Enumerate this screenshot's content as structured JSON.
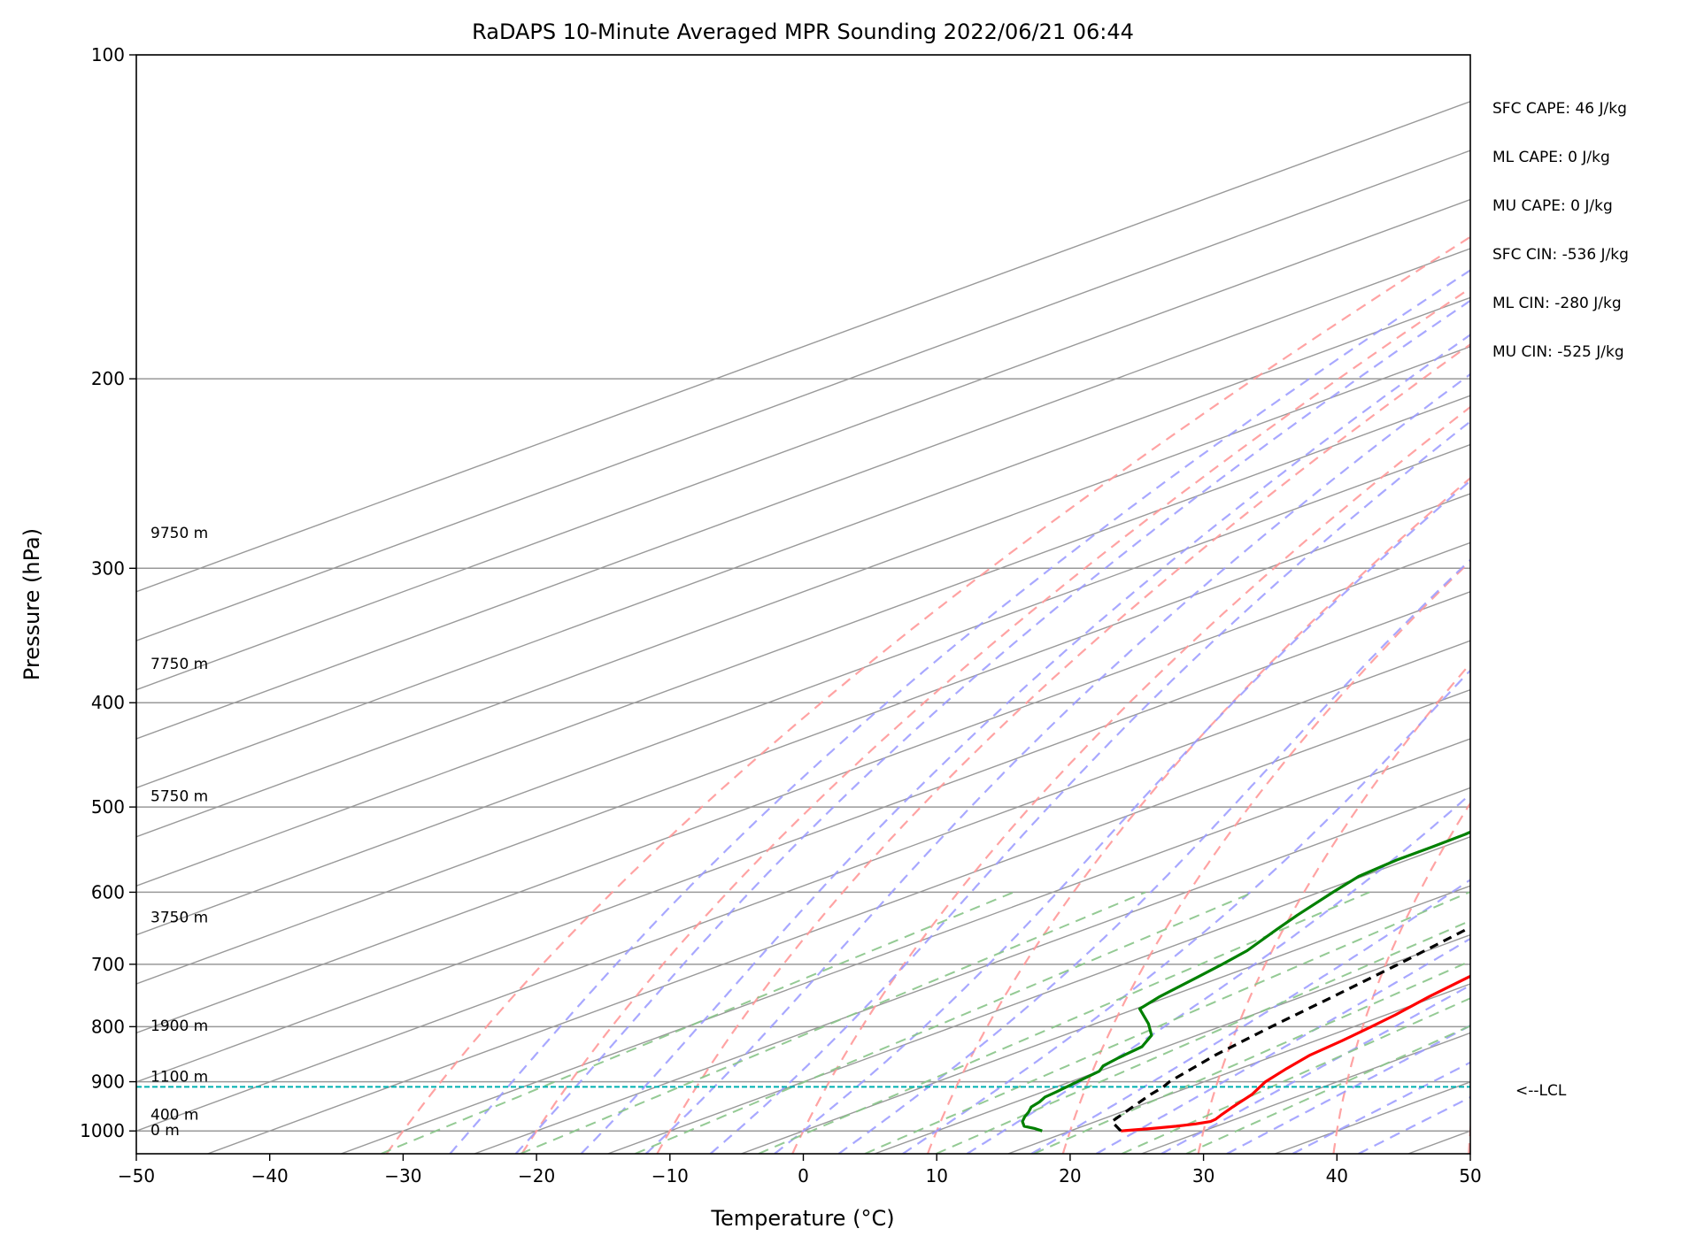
{
  "chart_data": {
    "type": "line",
    "subtype": "skew-t log-p sounding",
    "title": "RaDAPS 10-Minute Averaged MPR Sounding 2022/06/21 06:44",
    "xlabel": "Temperature (°C)",
    "ylabel": "Pressure (hPa)",
    "xlim": [
      -50,
      50
    ],
    "ylim": [
      1050,
      100
    ],
    "y_scale": "log",
    "x_ticks": [
      -50,
      -40,
      -30,
      -20,
      -10,
      0,
      10,
      20,
      30,
      40,
      50
    ],
    "x_tick_labels": [
      "−50",
      "−40",
      "−30",
      "−20",
      "−10",
      "0",
      "10",
      "20",
      "30",
      "40",
      "50"
    ],
    "y_ticks": [
      100,
      200,
      300,
      400,
      500,
      600,
      700,
      800,
      900,
      1000
    ],
    "y_tick_labels": [
      "100",
      "200",
      "300",
      "400",
      "500",
      "600",
      "700",
      "800",
      "900",
      "1000"
    ],
    "grid": true,
    "series": [
      {
        "key": "temperature",
        "color": "#ff0000",
        "style": "solid",
        "points": [
          [
            1000,
            23.8
          ],
          [
            995,
            25.5
          ],
          [
            990,
            27.0
          ],
          [
            985,
            28.0
          ],
          [
            980,
            28.6
          ],
          [
            975,
            28.5
          ],
          [
            965,
            28.0
          ],
          [
            950,
            27.3
          ],
          [
            925,
            26.2
          ],
          [
            900,
            24.6
          ],
          [
            875,
            23.5
          ],
          [
            850,
            22.5
          ],
          [
            825,
            22.0
          ],
          [
            800,
            21.3
          ],
          [
            780,
            20.7
          ],
          [
            750,
            19.5
          ],
          [
            720,
            18.5
          ],
          [
            700,
            17.9
          ],
          [
            680,
            17.3
          ],
          [
            650,
            15.6
          ],
          [
            620,
            13.8
          ],
          [
            600,
            12.3
          ],
          [
            575,
            10.8
          ],
          [
            550,
            9.4
          ],
          [
            525,
            7.3
          ],
          [
            500,
            5.4
          ],
          [
            480,
            4.3
          ],
          [
            460,
            3.7
          ],
          [
            440,
            1.6
          ],
          [
            420,
            0.0
          ],
          [
            400,
            -2.0
          ],
          [
            380,
            -3.6
          ],
          [
            360,
            -5.6
          ],
          [
            340,
            -7.7
          ],
          [
            320,
            -10.1
          ],
          [
            300,
            -12.2
          ],
          [
            290,
            -13.4
          ],
          [
            280,
            -14.4
          ],
          [
            275,
            -15.2
          ]
        ]
      },
      {
        "key": "dewpoint",
        "color": "#008000",
        "style": "solid",
        "points": [
          [
            1000,
            17.9
          ],
          [
            995,
            16.9
          ],
          [
            990,
            15.6
          ],
          [
            980,
            14.5
          ],
          [
            970,
            13.7
          ],
          [
            960,
            13.0
          ],
          [
            950,
            12.2
          ],
          [
            940,
            11.8
          ],
          [
            930,
            11.2
          ],
          [
            920,
            11.0
          ],
          [
            900,
            10.5
          ],
          [
            880,
            10.0
          ],
          [
            870,
            9.2
          ],
          [
            855,
            8.7
          ],
          [
            835,
            8.2
          ],
          [
            815,
            6.6
          ],
          [
            795,
            4.0
          ],
          [
            770,
            0.3
          ],
          [
            750,
            -0.7
          ],
          [
            720,
            -1.8
          ],
          [
            700,
            -2.6
          ],
          [
            680,
            -3.5
          ],
          [
            650,
            -5.6
          ],
          [
            630,
            -7.0
          ],
          [
            600,
            -9.0
          ],
          [
            580,
            -10.3
          ],
          [
            560,
            -10.8
          ],
          [
            545,
            -10.8
          ],
          [
            530,
            -10.9
          ],
          [
            520,
            -11.2
          ],
          [
            505,
            -12.7
          ],
          [
            490,
            -13.6
          ],
          [
            475,
            -14.2
          ],
          [
            460,
            -16.7
          ],
          [
            445,
            -18.8
          ],
          [
            430,
            -20.0
          ],
          [
            415,
            -22.4
          ],
          [
            395,
            -26.4
          ],
          [
            380,
            -27.0
          ],
          [
            370,
            -27.7
          ],
          [
            355,
            -30.5
          ],
          [
            345,
            -32.6
          ],
          [
            330,
            -32.9
          ],
          [
            320,
            -34.2
          ],
          [
            305,
            -35.0
          ],
          [
            300,
            -36.2
          ],
          [
            297,
            -44.8
          ],
          [
            293,
            -52.0
          ],
          [
            290,
            -55.0
          ],
          [
            285,
            -60.5
          ],
          [
            280,
            -66.0
          ],
          [
            275,
            -72.0
          ]
        ]
      },
      {
        "key": "parcel",
        "color": "#000000",
        "style": "dashed",
        "points": [
          [
            1000,
            23.8
          ],
          [
            980,
            21.2
          ],
          [
            950,
            19.8
          ],
          [
            925,
            18.6
          ],
          [
            910,
            18.0
          ],
          [
            900,
            17.4
          ],
          [
            850,
            15.4
          ],
          [
            800,
            13.8
          ],
          [
            750,
            12.3
          ],
          [
            700,
            10.6
          ],
          [
            650,
            8.6
          ],
          [
            600,
            6.4
          ],
          [
            550,
            3.9
          ],
          [
            500,
            1.0
          ],
          [
            450,
            -2.4
          ],
          [
            400,
            -6.3
          ],
          [
            350,
            -10.9
          ],
          [
            300,
            -16.4
          ],
          [
            285,
            -18.1
          ],
          [
            278,
            -19.0
          ]
        ]
      }
    ],
    "lcl_pressure": 910,
    "height_labels": [
      {
        "text": "9750 m",
        "p": 278
      },
      {
        "text": "7750 m",
        "p": 368
      },
      {
        "text": "5750 m",
        "p": 488
      },
      {
        "text": "3750 m",
        "p": 633
      },
      {
        "text": "1900 m",
        "p": 798
      },
      {
        "text": "1100 m",
        "p": 890
      },
      {
        "text": "400 m",
        "p": 965
      },
      {
        "text": "0 m",
        "p": 998
      }
    ],
    "dry_adiabats_theta_C": [
      -30,
      -20,
      -10,
      0,
      10,
      20,
      30,
      40,
      50,
      60,
      70,
      80,
      90,
      100,
      110,
      120,
      130,
      140,
      150
    ],
    "moist_adiabats_T0_C": [
      -25,
      -20,
      -15,
      -10,
      -5,
      0,
      5,
      10,
      15,
      20,
      25,
      30,
      35,
      40,
      45
    ],
    "mixing_ratio_lines_gkg": [
      0.4,
      1,
      2,
      4,
      7,
      10,
      16,
      24,
      32
    ],
    "colors": {
      "temperature": "#ff0000",
      "dewpoint": "#008000",
      "parcel": "#000000",
      "isotherm": "#999999",
      "isobar": "#999999",
      "dry_adiabat": "#ff9999",
      "moist_adiabat": "#9999ff",
      "mixing_ratio": "#88c488",
      "lcl_line": "#00b0b0"
    }
  },
  "stats": [
    "SFC CAPE: 46 J/kg",
    "ML CAPE: 0 J/kg",
    "MU CAPE: 0 J/kg",
    "SFC CIN: -536 J/kg",
    "ML CIN: -280 J/kg",
    "MU CIN: -525 J/kg"
  ],
  "lcl_label": "<--LCL"
}
